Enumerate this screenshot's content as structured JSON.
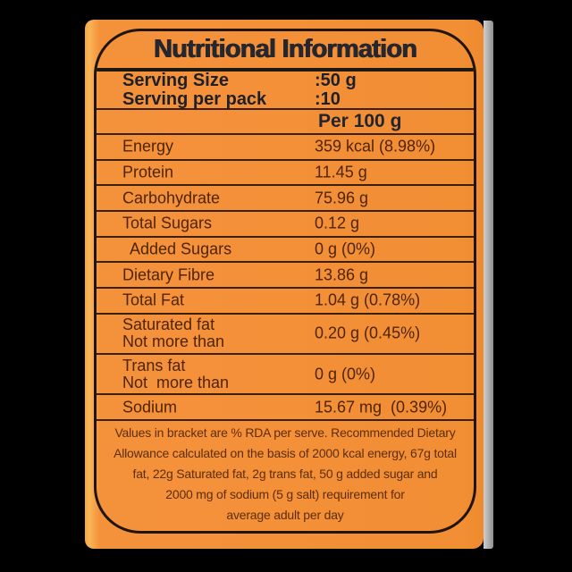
{
  "header": {
    "title": "Nutritional Information"
  },
  "serving": {
    "rows": [
      {
        "label": "Serving Size",
        "value": ":50 g"
      },
      {
        "label": "Serving per pack",
        "value": ":10"
      }
    ]
  },
  "table": {
    "column_header": "Per 100 g",
    "rows": [
      {
        "label": "Energy",
        "value": "359 kcal (8.98%)"
      },
      {
        "label": "Protein",
        "value": "11.45 g"
      },
      {
        "label": "Carbohydrate",
        "value": "75.96 g"
      },
      {
        "label": "Total Sugars",
        "value": "0.12 g"
      },
      {
        "label": "Added Sugars",
        "value": "0 g (0%)"
      },
      {
        "label": "Dietary Fibre",
        "value": "13.86 g"
      },
      {
        "label": "Total Fat",
        "value": "1.04 g (0.78%)"
      },
      {
        "label": "Saturated fat",
        "label2": "Not more than",
        "value": "0.20 g (0.45%)"
      },
      {
        "label": "Trans fat",
        "label2": "Not  more than",
        "value": "0 g (0%)"
      },
      {
        "label": "Sodium",
        "value": "15.67 mg  (0.39%)"
      }
    ]
  },
  "footer": {
    "lines": [
      "Values in bracket are % RDA per serve. Recommended Dietary",
      "Allowance calculated on the basis of 2000 kcal energy, 67g total",
      "fat, 22g Saturated fat, 2g trans fat, 50 g added sugar and",
      "2000 mg of sodium (5 g salt) requirement for",
      "average adult per day"
    ]
  },
  "colors": {
    "background": "#000000",
    "panel_orange": "#f4923c",
    "panel_edge_highlight": "#f9b558",
    "side_strip_gray": "#a9a9a9",
    "border": "#20150b",
    "divider": "#3c2005",
    "heading_text": "#26262e",
    "row_text": "#4f2406",
    "footer_text": "#5e2d08"
  }
}
